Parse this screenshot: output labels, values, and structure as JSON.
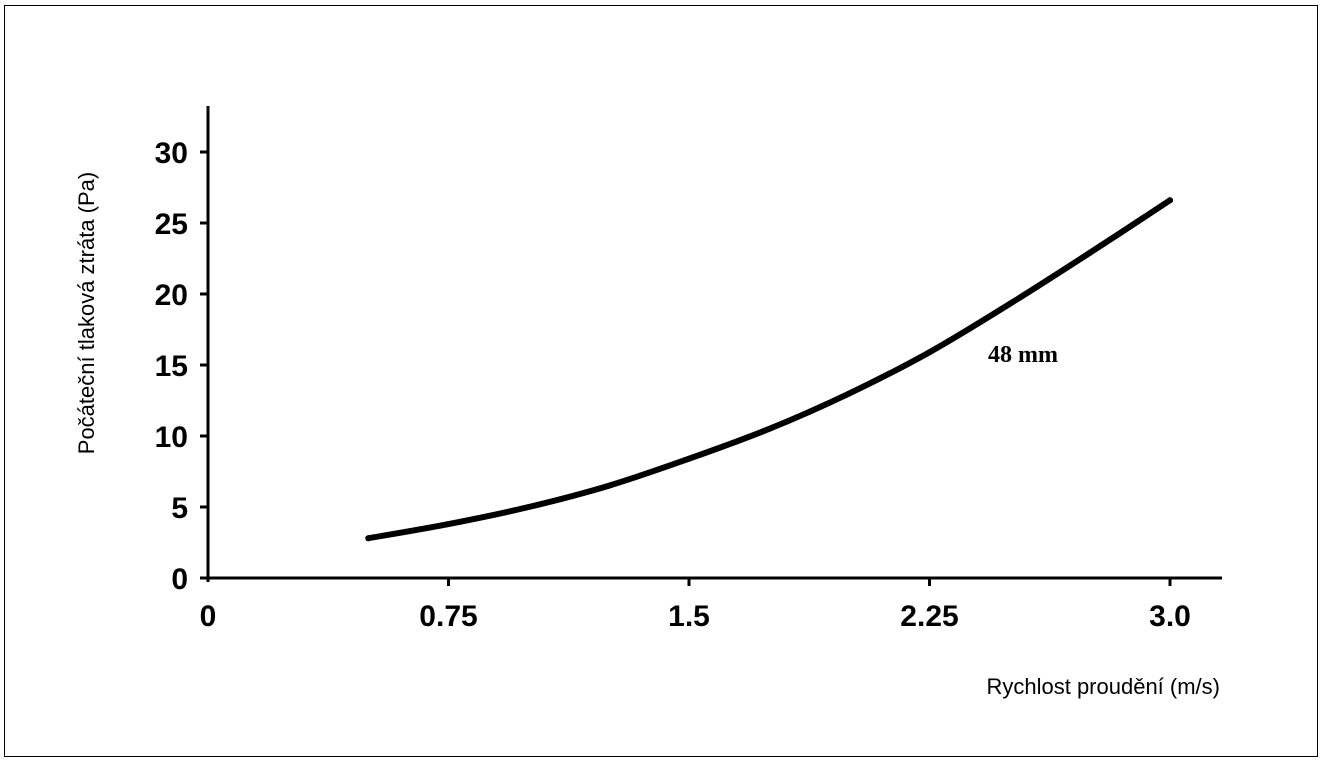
{
  "chart_data": {
    "type": "line",
    "title": "",
    "xlabel": "Rychlost proudění (m/s)",
    "ylabel": "Počáteční tlaková ztráta (Pa)",
    "xlim": [
      0,
      3.15
    ],
    "ylim": [
      0,
      30
    ],
    "x_ticks": [
      0,
      0.75,
      1.5,
      2.25,
      3.0
    ],
    "x_tick_labels": [
      "0",
      "0.75",
      "1.5",
      "2.25",
      "3.0"
    ],
    "y_ticks": [
      0,
      5,
      10,
      15,
      20,
      25,
      30
    ],
    "y_tick_labels": [
      "0",
      "5",
      "10",
      "15",
      "20",
      "25",
      "30"
    ],
    "grid": false,
    "series": [
      {
        "name": "48 mm",
        "x": [
          0.5,
          0.75,
          1.0,
          1.25,
          1.5,
          1.75,
          2.0,
          2.25,
          2.5,
          2.75,
          3.0
        ],
        "values": [
          2.8,
          3.8,
          5.0,
          6.5,
          8.4,
          10.5,
          13.0,
          15.9,
          19.3,
          22.9,
          26.6
        ]
      }
    ],
    "colors": {
      "line": "#000000",
      "axis": "#000000"
    }
  }
}
